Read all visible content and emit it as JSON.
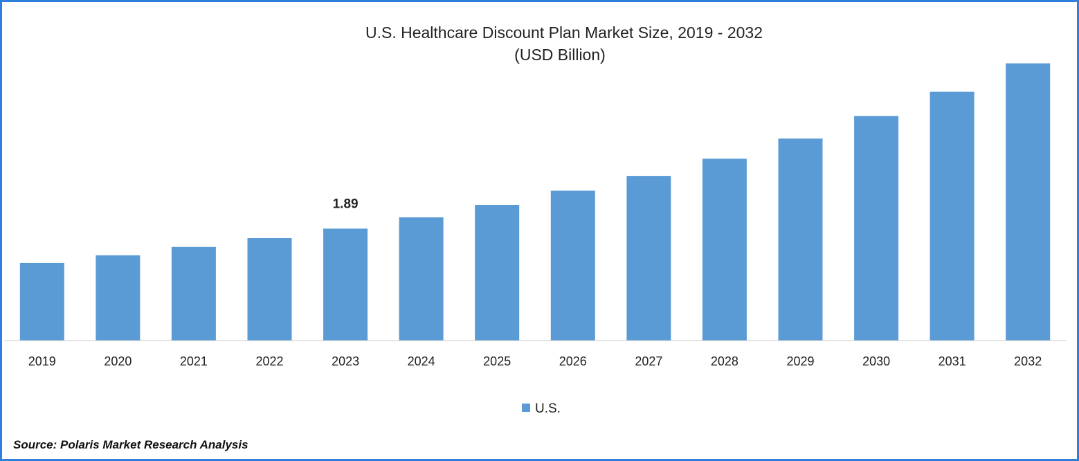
{
  "chart_data": {
    "type": "bar",
    "title": "U.S. Healthcare Discount Plan Market Size, 2019 - 2032",
    "subtitle": "(USD Billion)",
    "categories": [
      "2019",
      "2020",
      "2021",
      "2022",
      "2023",
      "2024",
      "2025",
      "2026",
      "2027",
      "2028",
      "2029",
      "2030",
      "2031",
      "2032"
    ],
    "series": [
      {
        "name": "U.S.",
        "values": [
          1.31,
          1.44,
          1.58,
          1.73,
          1.89,
          2.08,
          2.29,
          2.53,
          2.78,
          3.07,
          3.41,
          3.79,
          4.2,
          4.68
        ]
      }
    ],
    "data_labels": [
      {
        "category": "2023",
        "text": "1.89"
      }
    ],
    "ylim": [
      0,
      5.2
    ],
    "grid": false,
    "legend_position": "bottom",
    "bar_color": "#5b9bd5",
    "axis_color": "#c8c8c8"
  },
  "source": "Source: Polaris Market Research Analysis",
  "frame_color": "#2f7fdd"
}
